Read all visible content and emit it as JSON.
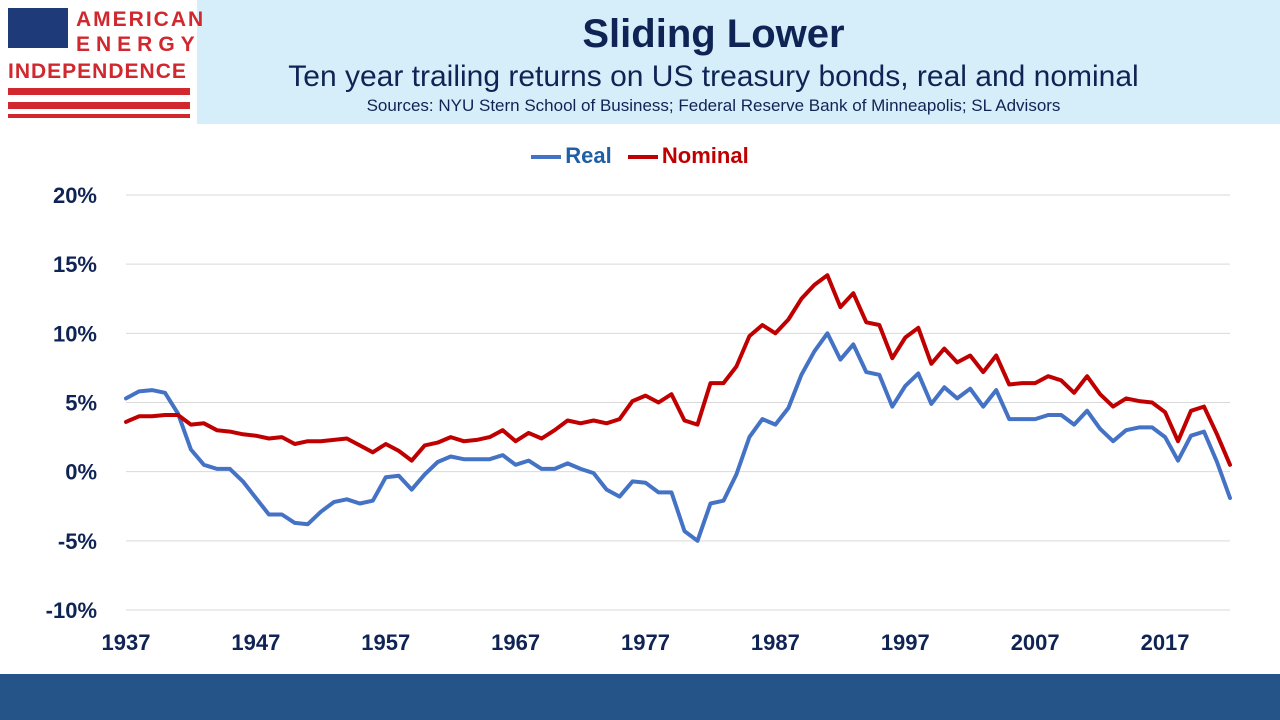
{
  "header": {
    "title": "Sliding Lower",
    "subtitle": "Ten year trailing returns on US treasury bonds, real and nominal",
    "sources": "Sources: NYU Stern School of Business; Federal Reserve Bank of Minneapolis; SL Advisors"
  },
  "logo": {
    "line1": "AMERICAN",
    "line2": "ENERGY",
    "line3": "INDEPENDENCE"
  },
  "colors": {
    "real": "#4472c4",
    "nominal": "#c00000",
    "text": "#0f2454",
    "header_bg": "#d6eefa",
    "footer_bg": "#245488"
  },
  "chart_data": {
    "type": "line",
    "legend_position": "top-center",
    "grid": true,
    "ylim": [
      -0.1,
      0.2
    ],
    "yticks": [
      -0.1,
      -0.05,
      0,
      0.05,
      0.1,
      0.15,
      0.2
    ],
    "ytick_labels": [
      "-10%",
      "-5%",
      "0%",
      "5%",
      "10%",
      "15%",
      "20%"
    ],
    "xlim": [
      1937,
      2022
    ],
    "xticks": [
      1937,
      1947,
      1957,
      1967,
      1977,
      1987,
      1997,
      2007,
      2017
    ],
    "xtick_labels": [
      "1937",
      "1947",
      "1957",
      "1967",
      "1977",
      "1987",
      "1997",
      "2007",
      "2017"
    ],
    "x_start": 1937,
    "series": [
      {
        "name": "Real",
        "color": "#4472c4",
        "values": [
          0.053,
          0.058,
          0.059,
          0.057,
          0.042,
          0.016,
          0.005,
          0.002,
          0.002,
          -0.007,
          -0.019,
          -0.031,
          -0.031,
          -0.037,
          -0.038,
          -0.029,
          -0.022,
          -0.02,
          -0.023,
          -0.021,
          -0.004,
          -0.003,
          -0.013,
          -0.002,
          0.007,
          0.011,
          0.009,
          0.009,
          0.009,
          0.012,
          0.005,
          0.008,
          0.002,
          0.002,
          0.006,
          0.002,
          -0.001,
          -0.013,
          -0.018,
          -0.007,
          -0.008,
          -0.015,
          -0.015,
          -0.043,
          -0.05,
          -0.023,
          -0.021,
          -0.002,
          0.025,
          0.038,
          0.034,
          0.046,
          0.07,
          0.087,
          0.1,
          0.081,
          0.092,
          0.072,
          0.07,
          0.047,
          0.062,
          0.071,
          0.049,
          0.061,
          0.053,
          0.06,
          0.047,
          0.059,
          0.038,
          0.038,
          0.038,
          0.041,
          0.041,
          0.034,
          0.044,
          0.031,
          0.022,
          0.03,
          0.032,
          0.032,
          0.025,
          0.008,
          0.026,
          0.029,
          0.007,
          -0.019
        ]
      },
      {
        "name": "Nominal",
        "color": "#c00000",
        "values": [
          0.036,
          0.04,
          0.04,
          0.041,
          0.041,
          0.034,
          0.035,
          0.03,
          0.029,
          0.027,
          0.026,
          0.024,
          0.025,
          0.02,
          0.022,
          0.022,
          0.023,
          0.024,
          0.019,
          0.014,
          0.02,
          0.015,
          0.008,
          0.019,
          0.021,
          0.025,
          0.022,
          0.023,
          0.025,
          0.03,
          0.022,
          0.028,
          0.024,
          0.03,
          0.037,
          0.035,
          0.037,
          0.035,
          0.038,
          0.051,
          0.055,
          0.05,
          0.056,
          0.037,
          0.034,
          0.064,
          0.064,
          0.076,
          0.098,
          0.106,
          0.1,
          0.11,
          0.125,
          0.135,
          0.142,
          0.119,
          0.129,
          0.108,
          0.106,
          0.082,
          0.097,
          0.104,
          0.078,
          0.089,
          0.079,
          0.084,
          0.072,
          0.084,
          0.063,
          0.064,
          0.064,
          0.069,
          0.066,
          0.057,
          0.069,
          0.056,
          0.047,
          0.053,
          0.051,
          0.05,
          0.043,
          0.022,
          0.044,
          0.047,
          0.027,
          0.005
        ]
      }
    ]
  }
}
